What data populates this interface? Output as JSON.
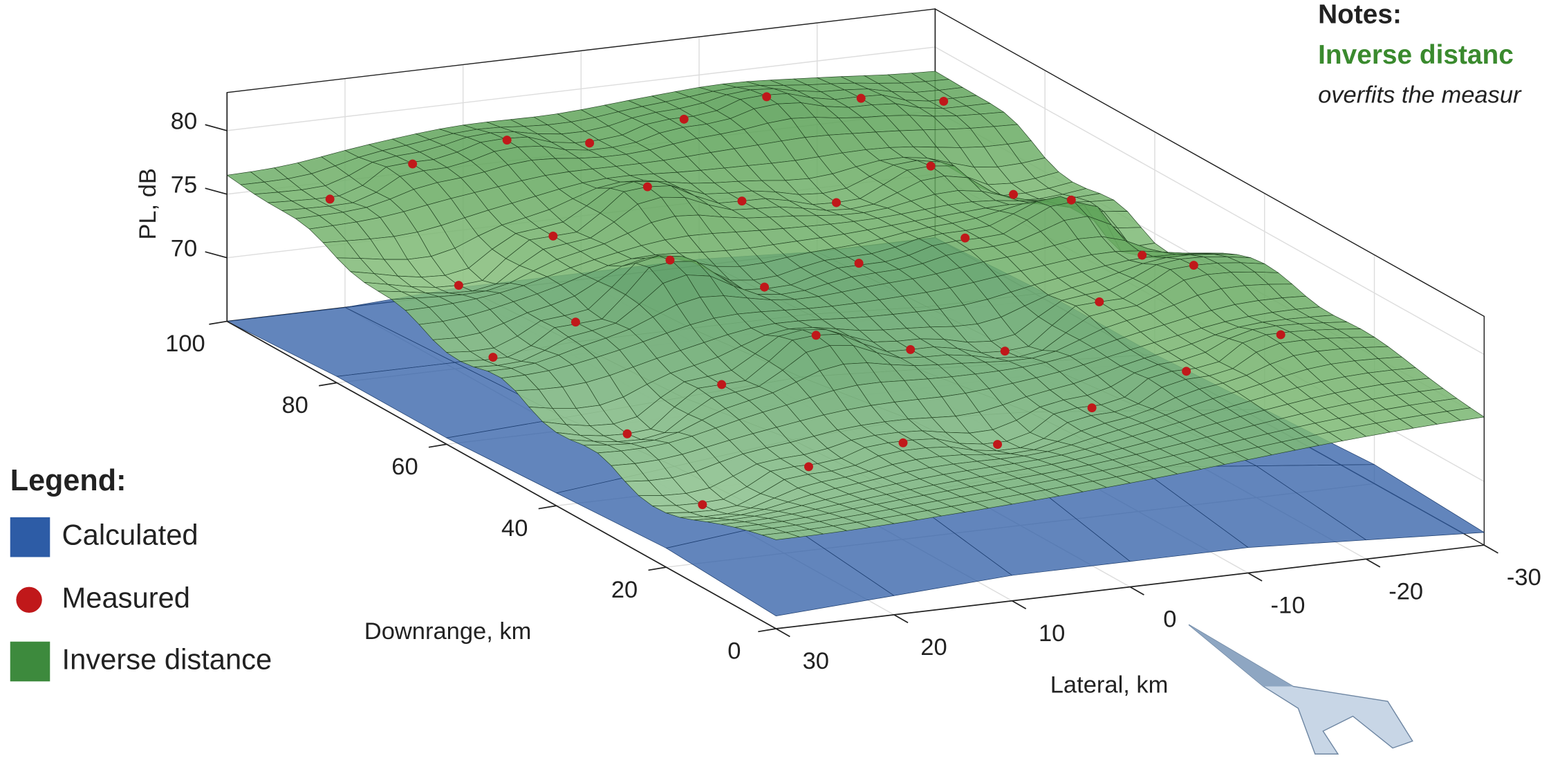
{
  "chart_data": {
    "type": "surface3d",
    "xlabel": "Lateral, km",
    "ylabel": "Downrange, km",
    "zlabel": "PL, dB",
    "xlim": [
      30,
      -30
    ],
    "xticks": [
      30,
      20,
      10,
      0,
      -10,
      -20,
      -30
    ],
    "ylim": [
      0,
      100
    ],
    "yticks": [
      0,
      20,
      40,
      60,
      80,
      100
    ],
    "zlim": [
      65,
      83
    ],
    "zticks": [
      70,
      75,
      80
    ],
    "grid": true,
    "legend_title": "Legend:",
    "notes_title": "Notes:",
    "notes": [
      "Inverse distanc",
      "overfits the measur"
    ],
    "series": [
      {
        "name": "Calculated",
        "color": "#2d5ca6",
        "x": [
          30,
          20,
          10,
          0,
          -10,
          -20,
          -30
        ],
        "y": [
          0,
          20,
          40,
          60,
          80,
          100
        ],
        "values": [
          [
            66,
            66.5,
            67,
            67,
            67,
            66.5,
            66
          ],
          [
            66.5,
            67.5,
            68.5,
            69,
            68.5,
            67.5,
            66.5
          ],
          [
            66,
            67,
            68,
            68.5,
            68,
            67,
            66
          ],
          [
            65.5,
            66,
            66.5,
            67,
            66.5,
            66,
            65.5
          ],
          [
            65.5,
            65.5,
            66,
            66,
            66,
            65.5,
            65.5
          ],
          [
            65,
            65,
            65.5,
            65.5,
            65.5,
            65,
            65
          ]
        ]
      },
      {
        "name": "Measured",
        "color": "#c0181a",
        "x": [
          25,
          18,
          10,
          3,
          -5,
          -12,
          -20,
          -27,
          22,
          14,
          6,
          -2,
          -10,
          -18,
          -25,
          27,
          20,
          12,
          4,
          -4,
          -13,
          -22,
          -28,
          24,
          16,
          8,
          0,
          -8,
          -16,
          -24,
          26,
          17,
          9,
          1,
          -7,
          -15,
          -23
        ],
        "y": [
          92,
          92,
          92,
          92,
          92,
          92,
          92,
          92,
          75,
          75,
          75,
          75,
          75,
          75,
          75,
          58,
          58,
          58,
          58,
          58,
          58,
          58,
          58,
          40,
          40,
          40,
          40,
          40,
          40,
          40,
          22,
          22,
          22,
          22,
          22,
          22,
          22
        ],
        "values": [
          76,
          78,
          79,
          78,
          79,
          80,
          79,
          78,
          73,
          76,
          79,
          77,
          76,
          78,
          75,
          72,
          74,
          78,
          75,
          76,
          77,
          79,
          74,
          70,
          73,
          76,
          74,
          73,
          76,
          78,
          69,
          71,
          72,
          71,
          73,
          75,
          77
        ]
      },
      {
        "name": "Inverse distance",
        "color": "#3d8a3d"
      }
    ]
  }
}
